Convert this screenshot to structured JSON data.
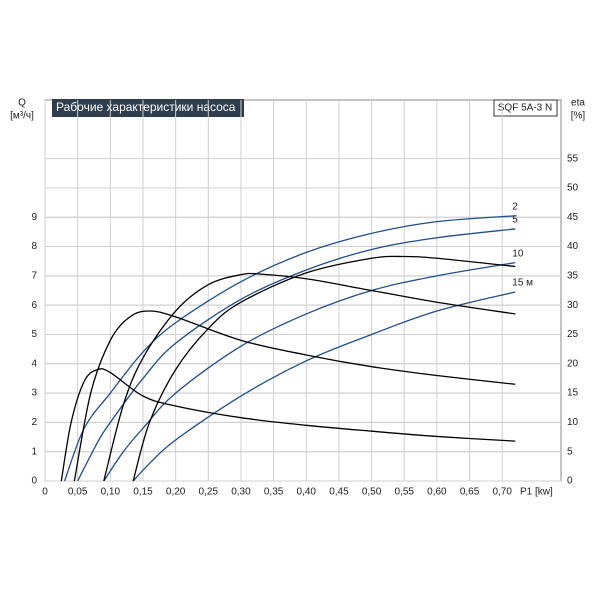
{
  "chart_data": {
    "type": "line",
    "title": "Рабочие характеристики насоса",
    "model": "SQF 5A-3 N",
    "y_label": "Q",
    "y_unit": "[м³/ч]",
    "y2_label": "eta",
    "y2_unit": "[%]",
    "x_label": "P1 [kw]",
    "xlim": [
      0,
      0.79
    ],
    "ylim": [
      0,
      13
    ],
    "y2lim": [
      0,
      65
    ],
    "xticks": [
      0,
      {
        "value": 0.05,
        "label": "0,05"
      },
      {
        "value": 0.1,
        "label": "0,10"
      },
      {
        "value": 0.15,
        "label": "0,15"
      },
      {
        "value": 0.2,
        "label": "0,20"
      },
      {
        "value": 0.25,
        "label": "0,25"
      },
      {
        "value": 0.3,
        "label": "0,30"
      },
      {
        "value": 0.35,
        "label": "0,35"
      },
      {
        "value": 0.4,
        "label": "0,40"
      },
      {
        "value": 0.45,
        "label": "0,45"
      },
      {
        "value": 0.5,
        "label": "0,50"
      },
      {
        "value": 0.55,
        "label": "0,55"
      },
      {
        "value": 0.6,
        "label": "0,60"
      },
      {
        "value": 0.65,
        "label": "0,65"
      },
      {
        "value": 0.7,
        "label": "0,70"
      }
    ],
    "yticks": [
      0,
      1,
      2,
      3,
      4,
      5,
      6,
      7,
      8,
      9
    ],
    "y2ticks": [
      0,
      5,
      10,
      15,
      20,
      25,
      30,
      35,
      40,
      45,
      50,
      55
    ],
    "grid": true,
    "series": [
      {
        "name": "2",
        "color": "#1f4e8c",
        "x": [
          0.03,
          0.06,
          0.1,
          0.15,
          0.2,
          0.3,
          0.4,
          0.5,
          0.6,
          0.72
        ],
        "values": [
          0,
          1.8,
          3.0,
          4.4,
          5.4,
          6.8,
          7.8,
          8.45,
          8.85,
          9.05
        ]
      },
      {
        "name": "5",
        "color": "#1f4e8c",
        "x": [
          0.05,
          0.08,
          0.1,
          0.15,
          0.2,
          0.3,
          0.4,
          0.5,
          0.6,
          0.72
        ],
        "values": [
          0,
          1.3,
          2.0,
          3.5,
          4.7,
          6.2,
          7.2,
          7.9,
          8.3,
          8.6
        ]
      },
      {
        "name": "10",
        "color": "#1f4e8c",
        "x": [
          0.09,
          0.12,
          0.15,
          0.2,
          0.3,
          0.4,
          0.5,
          0.6,
          0.72
        ],
        "values": [
          0,
          1.0,
          1.8,
          3.0,
          4.6,
          5.7,
          6.5,
          7.0,
          7.45
        ]
      },
      {
        "name": "15 м",
        "color": "#1f4e8c",
        "x": [
          0.135,
          0.16,
          0.2,
          0.3,
          0.4,
          0.5,
          0.6,
          0.72
        ],
        "values": [
          0,
          0.6,
          1.4,
          2.9,
          4.1,
          5.0,
          5.8,
          6.45
        ]
      },
      {
        "color": "#000000",
        "axis": "y2",
        "x": [
          0.025,
          0.04,
          0.06,
          0.08,
          0.1,
          0.15,
          0.2,
          0.3,
          0.4,
          0.5,
          0.6,
          0.72
        ],
        "values": [
          0,
          10,
          17,
          19,
          18.5,
          14.5,
          12.8,
          10.8,
          9.5,
          8.5,
          7.6,
          6.8
        ]
      },
      {
        "color": "#000000",
        "axis": "y2",
        "x": [
          0.045,
          0.07,
          0.1,
          0.13,
          0.16,
          0.2,
          0.3,
          0.4,
          0.5,
          0.6,
          0.72
        ],
        "values": [
          0,
          15,
          24,
          28,
          29,
          28,
          24,
          21.5,
          19.5,
          18,
          16.5
        ]
      },
      {
        "color": "#000000",
        "axis": "y2",
        "x": [
          0.09,
          0.12,
          0.15,
          0.2,
          0.25,
          0.3,
          0.33,
          0.4,
          0.5,
          0.6,
          0.72
        ],
        "values": [
          0,
          13,
          21,
          29,
          33.5,
          35.2,
          35.3,
          34.5,
          32.5,
          30.5,
          28.5
        ]
      },
      {
        "color": "#000000",
        "axis": "y2",
        "x": [
          0.135,
          0.16,
          0.2,
          0.25,
          0.3,
          0.4,
          0.5,
          0.55,
          0.6,
          0.72
        ],
        "values": [
          0,
          10,
          19,
          26,
          30.5,
          35.5,
          38,
          38.3,
          38,
          36.6
        ]
      }
    ]
  }
}
